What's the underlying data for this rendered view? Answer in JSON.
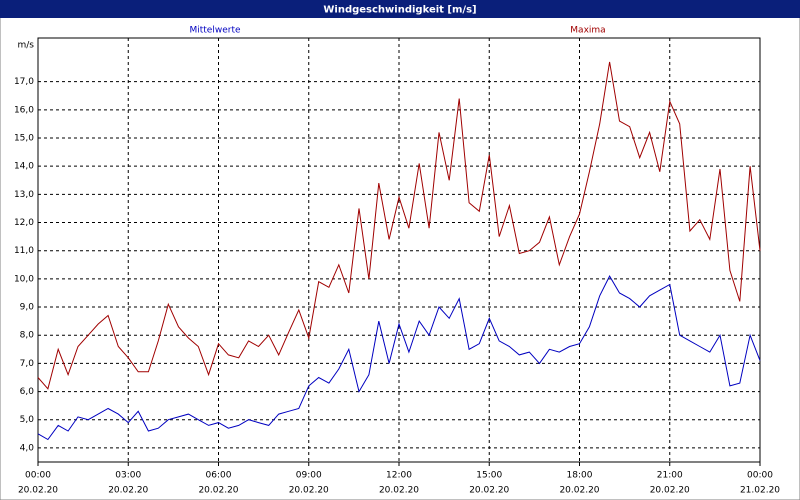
{
  "window_title": "Windgeschwindigkeit [m/s]",
  "chart_data": {
    "type": "line",
    "ylabel": "m/s",
    "x": [
      0,
      0.33,
      0.67,
      1,
      1.33,
      1.67,
      2,
      2.33,
      2.67,
      3,
      3.33,
      3.67,
      4,
      4.33,
      4.67,
      5,
      5.33,
      5.67,
      6,
      6.33,
      6.67,
      7,
      7.33,
      7.67,
      8,
      8.33,
      8.67,
      9,
      9.33,
      9.67,
      10,
      10.33,
      10.67,
      11,
      11.33,
      11.67,
      12,
      12.33,
      12.67,
      13,
      13.33,
      13.67,
      14,
      14.33,
      14.67,
      15,
      15.33,
      15.67,
      16,
      16.33,
      16.67,
      17,
      17.33,
      17.67,
      18,
      18.33,
      18.67,
      19,
      19.33,
      19.67,
      20,
      20.33,
      20.67,
      21,
      21.33,
      21.67,
      22,
      22.33,
      22.67,
      23,
      23.33,
      23.67,
      24
    ],
    "xlim": [
      0,
      24
    ],
    "xticks": [
      {
        "value": 0,
        "label": "00:00"
      },
      {
        "value": 3,
        "label": "03:00"
      },
      {
        "value": 6,
        "label": "06:00"
      },
      {
        "value": 9,
        "label": "09:00"
      },
      {
        "value": 12,
        "label": "12:00"
      },
      {
        "value": 15,
        "label": "15:00"
      },
      {
        "value": 18,
        "label": "18:00"
      },
      {
        "value": 21,
        "label": "21:00"
      },
      {
        "value": 24,
        "label": "00:00"
      }
    ],
    "xtick_dates": [
      "20.02.20",
      "20.02.20",
      "20.02.20",
      "20.02.20",
      "20.02.20",
      "20.02.20",
      "20.02.20",
      "20.02.20",
      "21.02.20"
    ],
    "ylim": [
      3.5,
      18.55
    ],
    "yticks": [
      {
        "value": 4,
        "label": "4,0"
      },
      {
        "value": 5,
        "label": "5,0"
      },
      {
        "value": 6,
        "label": "6,0"
      },
      {
        "value": 7,
        "label": "7,0"
      },
      {
        "value": 8,
        "label": "8,0"
      },
      {
        "value": 9,
        "label": "9,0"
      },
      {
        "value": 10,
        "label": "10,0"
      },
      {
        "value": 11,
        "label": "11,0"
      },
      {
        "value": 12,
        "label": "12,0"
      },
      {
        "value": 13,
        "label": "13,0"
      },
      {
        "value": 14,
        "label": "14,0"
      },
      {
        "value": 15,
        "label": "15,0"
      },
      {
        "value": 16,
        "label": "16,0"
      },
      {
        "value": 17,
        "label": "17,0"
      }
    ],
    "grid": true,
    "series": [
      {
        "name": "Mittelwerte",
        "color": "#0000c0",
        "values": [
          4.5,
          4.3,
          4.8,
          4.6,
          5.1,
          5.0,
          5.2,
          5.4,
          5.2,
          4.9,
          5.3,
          4.6,
          4.7,
          5.0,
          5.1,
          5.2,
          5.0,
          4.8,
          4.9,
          4.7,
          4.8,
          5.0,
          4.9,
          4.8,
          5.2,
          5.3,
          5.4,
          6.2,
          6.5,
          6.3,
          6.8,
          7.5,
          6.0,
          6.6,
          8.5,
          7.0,
          8.4,
          7.4,
          8.5,
          8.0,
          9.0,
          8.6,
          9.3,
          7.5,
          7.7,
          8.6,
          7.8,
          7.6,
          7.3,
          7.4,
          7.0,
          7.5,
          7.4,
          7.6,
          7.7,
          8.3,
          9.4,
          10.1,
          9.5,
          9.3,
          9.0,
          9.4,
          9.6,
          9.8,
          8.0,
          7.8,
          7.6,
          7.4,
          8.0,
          6.2,
          6.3,
          8.0,
          7.1
        ]
      },
      {
        "name": "Maxima",
        "color": "#a00000",
        "values": [
          6.5,
          6.1,
          7.5,
          6.6,
          7.6,
          8.0,
          8.4,
          8.7,
          7.6,
          7.2,
          6.7,
          6.7,
          7.8,
          9.1,
          8.3,
          7.9,
          7.6,
          6.6,
          7.7,
          7.3,
          7.2,
          7.8,
          7.6,
          8.0,
          7.3,
          8.1,
          8.9,
          7.9,
          9.9,
          9.7,
          10.5,
          9.5,
          12.5,
          10.0,
          13.4,
          11.4,
          12.9,
          11.8,
          14.1,
          11.8,
          15.2,
          13.5,
          16.4,
          12.7,
          12.4,
          14.4,
          11.5,
          12.6,
          10.9,
          11.0,
          11.3,
          12.2,
          10.5,
          11.5,
          12.3,
          13.8,
          15.5,
          17.7,
          15.6,
          15.4,
          14.3,
          15.2,
          13.8,
          16.3,
          15.5,
          11.7,
          12.1,
          11.4,
          13.9,
          10.3,
          9.2,
          14.0,
          11.0
        ]
      }
    ]
  }
}
